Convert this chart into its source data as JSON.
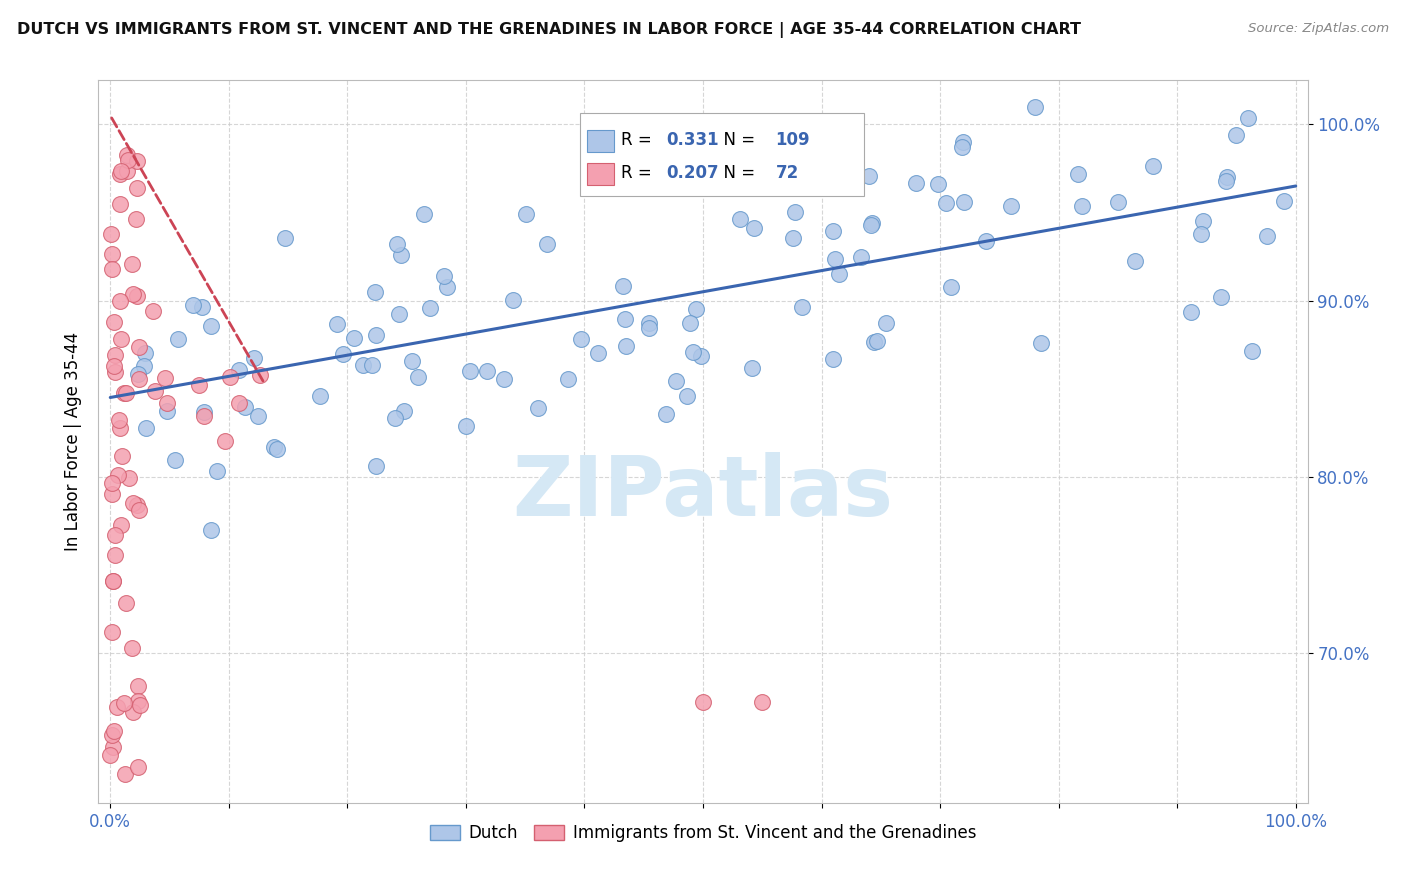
{
  "title": "DUTCH VS IMMIGRANTS FROM ST. VINCENT AND THE GRENADINES IN LABOR FORCE | AGE 35-44 CORRELATION CHART",
  "source": "Source: ZipAtlas.com",
  "ylabel": "In Labor Force | Age 35-44",
  "xlim": [
    -0.01,
    1.01
  ],
  "ylim": [
    0.615,
    1.025
  ],
  "yticks": [
    0.7,
    0.8,
    0.9,
    1.0
  ],
  "ytick_labels": [
    "70.0%",
    "80.0%",
    "90.0%",
    "100.0%"
  ],
  "xticks": [
    0.0,
    0.1,
    0.2,
    0.3,
    0.4,
    0.5,
    0.6,
    0.7,
    0.8,
    0.9,
    1.0
  ],
  "xtick_labels": [
    "0.0%",
    "",
    "",
    "",
    "",
    "",
    "",
    "",
    "",
    "",
    "100.0%"
  ],
  "dutch_color": "#aec6e8",
  "dutch_edge_color": "#6699cc",
  "immigrant_color": "#f4a0b0",
  "immigrant_edge_color": "#d46070",
  "trend_blue": "#3a65b0",
  "trend_pink": "#cc4455",
  "watermark_color": "#d5e8f5",
  "legend_R_dutch": "0.331",
  "legend_N_dutch": "109",
  "legend_R_immigrant": "0.207",
  "legend_N_immigrant": "72",
  "dutch_trend_x0": 0.0,
  "dutch_trend_y0": 0.845,
  "dutch_trend_x1": 1.0,
  "dutch_trend_y1": 0.965,
  "immigrant_trend_x0": 0.0,
  "immigrant_trend_y0": 1.005,
  "immigrant_trend_x1": 0.13,
  "immigrant_trend_y1": 0.853
}
